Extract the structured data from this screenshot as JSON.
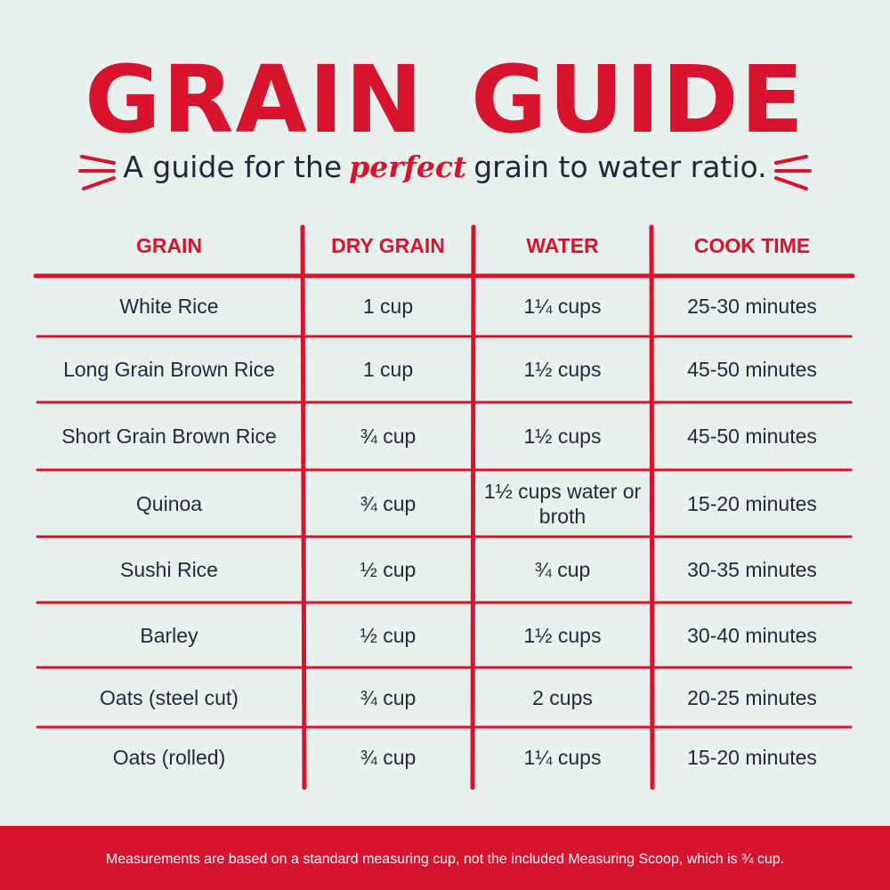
{
  "header": {
    "title": "GRAIN GUIDE",
    "subtitle": {
      "before": "A guide for the",
      "emphasis": "perfect",
      "after": "grain to water ratio."
    }
  },
  "table": {
    "columns": [
      "GRAIN",
      "DRY GRAIN",
      "WATER",
      "COOK TIME"
    ],
    "rows": [
      [
        "White Rice",
        "1 cup",
        "1¼ cups",
        "25-30 minutes"
      ],
      [
        "Long Grain Brown Rice",
        "1 cup",
        "1½ cups",
        "45-50 minutes"
      ],
      [
        "Short Grain Brown Rice",
        "¾ cup",
        "1½ cups",
        "45-50 minutes"
      ],
      [
        "Quinoa",
        "¾ cup",
        "1½ cups water or broth",
        "15-20 minutes"
      ],
      [
        "Sushi Rice",
        "½ cup",
        "¾ cup",
        "30-35 minutes"
      ],
      [
        "Barley",
        "½ cup",
        "1½ cups",
        "30-40 minutes"
      ],
      [
        "Oats (steel cut)",
        "¾ cup",
        "2 cups",
        "20-25 minutes"
      ],
      [
        "Oats (rolled)",
        "¾ cup",
        "1¼ cups",
        "15-20 minutes"
      ]
    ]
  },
  "footer": {
    "note": "Measurements are based on a standard measuring cup, not the included Measuring Scoop, which is ¾ cup."
  }
}
